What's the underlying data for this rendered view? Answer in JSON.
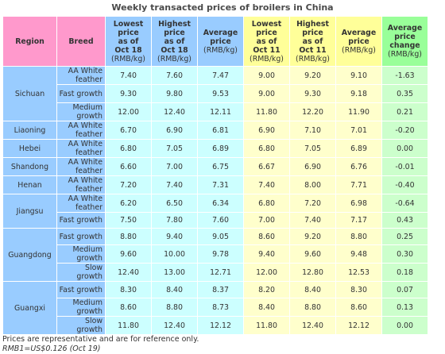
{
  "title": "Weekly transacted prices of broilers in China",
  "headers": {
    "region": "Region",
    "breed": "Breed",
    "low18": [
      "Lowest",
      "price",
      "as of",
      "Oct 18"
    ],
    "high18": [
      "Highest",
      "price",
      "as of",
      "Oct 18"
    ],
    "avg18": [
      "Average",
      "price"
    ],
    "low11": [
      "Lowest",
      "price",
      "as of",
      "Oct 11"
    ],
    "high11": [
      "Highest",
      "price",
      "as of",
      "Oct 11"
    ],
    "avg11": [
      "Average",
      "price"
    ],
    "change": [
      "Average",
      "price",
      "change"
    ],
    "unit": "(RMB/kg)"
  },
  "rows": [
    {
      "region": "Sichuan",
      "breed": [
        "AA White",
        "feather"
      ],
      "low18": "7.40",
      "high18": "7.60",
      "avg18": "7.47",
      "low11": "9.00",
      "high11": "9.20",
      "avg11": "9.10",
      "change": "-1.63"
    },
    {
      "region": "",
      "breed": [
        "Fast growth"
      ],
      "low18": "9.30",
      "high18": "9.80",
      "avg18": "9.53",
      "low11": "9.00",
      "high11": "9.30",
      "avg11": "9.18",
      "change": "0.35"
    },
    {
      "region": "",
      "breed": [
        "Medium",
        "growth"
      ],
      "low18": "12.00",
      "high18": "12.40",
      "avg18": "12.11",
      "low11": "11.80",
      "high11": "12.20",
      "avg11": "11.90",
      "change": "0.21"
    },
    {
      "region": "Liaoning",
      "breed": [
        "AA White",
        "feather"
      ],
      "low18": "6.70",
      "high18": "6.90",
      "avg18": "6.81",
      "low11": "6.90",
      "high11": "7.10",
      "avg11": "7.01",
      "change": "-0.20"
    },
    {
      "region": "Hebei",
      "breed": [
        "AA White",
        "feather"
      ],
      "low18": "6.80",
      "high18": "7.05",
      "avg18": "6.89",
      "low11": "6.80",
      "high11": "7.05",
      "avg11": "6.89",
      "change": "0.00"
    },
    {
      "region": "Shandong",
      "breed": [
        "AA White",
        "feather"
      ],
      "low18": "6.60",
      "high18": "7.00",
      "avg18": "6.75",
      "low11": "6.67",
      "high11": "6.90",
      "avg11": "6.76",
      "change": "-0.01"
    },
    {
      "region": "Henan",
      "breed": [
        "AA White",
        "feather"
      ],
      "low18": "7.20",
      "high18": "7.40",
      "avg18": "7.31",
      "low11": "7.40",
      "high11": "8.00",
      "avg11": "7.71",
      "change": "-0.40"
    },
    {
      "region": "Jiangsu",
      "breed": [
        "AA White",
        "feather"
      ],
      "low18": "6.20",
      "high18": "6.50",
      "avg18": "6.34",
      "low11": "6.80",
      "high11": "7.20",
      "avg11": "6.98",
      "change": "-0.64"
    },
    {
      "region": "",
      "breed": [
        "Fast growth"
      ],
      "low18": "7.50",
      "high18": "7.80",
      "avg18": "7.60",
      "low11": "7.00",
      "high11": "7.40",
      "avg11": "7.17",
      "change": "0.43"
    },
    {
      "region": "Guangdong",
      "breed": [
        "Fast growth"
      ],
      "low18": "8.80",
      "high18": "9.40",
      "avg18": "9.05",
      "low11": "8.60",
      "high11": "9.20",
      "avg11": "8.80",
      "change": "0.25"
    },
    {
      "region": "",
      "breed": [
        "Medium",
        "growth"
      ],
      "low18": "9.60",
      "high18": "10.00",
      "avg18": "9.78",
      "low11": "9.40",
      "high11": "9.60",
      "avg11": "9.48",
      "change": "0.30"
    },
    {
      "region": "",
      "breed": [
        "Slow growth"
      ],
      "low18": "12.40",
      "high18": "13.00",
      "avg18": "12.71",
      "low11": "12.00",
      "high11": "12.80",
      "avg11": "12.53",
      "change": "0.18"
    },
    {
      "region": "Guangxi",
      "breed": [
        "Fast growth"
      ],
      "low18": "8.30",
      "high18": "8.40",
      "avg18": "8.37",
      "low11": "8.20",
      "high11": "8.40",
      "avg11": "8.30",
      "change": "0.07"
    },
    {
      "region": "",
      "breed": [
        "Medium",
        "growth"
      ],
      "low18": "8.60",
      "high18": "8.80",
      "avg18": "8.73",
      "low11": "8.40",
      "high11": "8.80",
      "avg11": "8.60",
      "change": "0.13"
    },
    {
      "region": "",
      "breed": [
        "Slow growth"
      ],
      "low18": "11.80",
      "high18": "12.40",
      "avg18": "12.12",
      "low11": "11.80",
      "high11": "12.40",
      "avg11": "12.12",
      "change": "0.00"
    }
  ],
  "footnote": "Prices are representative and are for reference only.",
  "exchange": "RMB1=US$0.126 (Oct 19)",
  "colors": {
    "pink": "#ff99cc",
    "blue": "#99ccff",
    "yellow": "#ffff99",
    "green": "#99ff99",
    "cyan_cell": "#ccffff",
    "yellow_cell": "#ffffcc",
    "green_cell": "#ccffcc"
  }
}
